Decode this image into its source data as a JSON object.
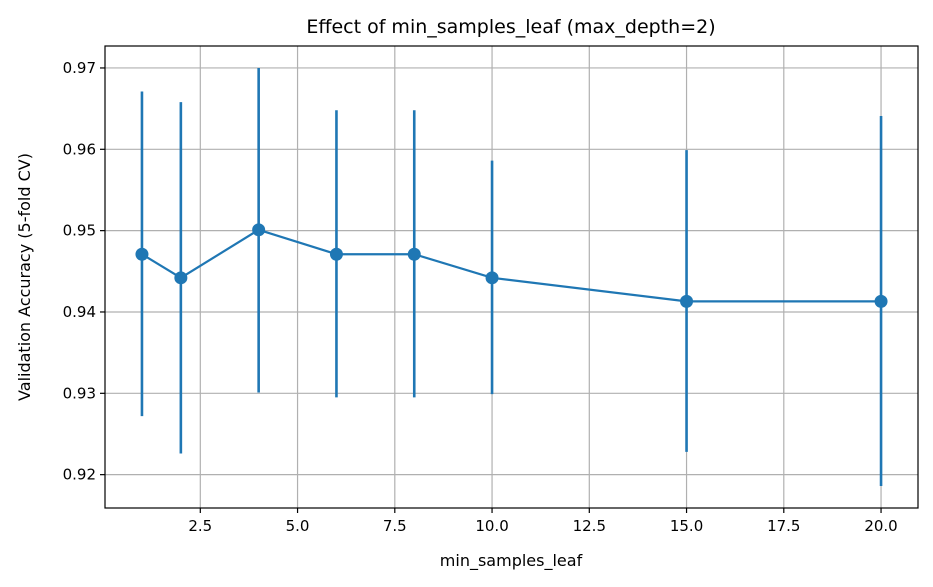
{
  "chart_data": {
    "type": "line",
    "title": "Effect of min_samples_leaf (max_depth=2)",
    "xlabel": "min_samples_leaf",
    "ylabel": "Validation Accuracy (5-fold CV)",
    "xlim": [
      0.05,
      20.95
    ],
    "ylim": [
      0.9159,
      0.9727
    ],
    "xticks": [
      2.5,
      5.0,
      7.5,
      10.0,
      12.5,
      15.0,
      17.5,
      20.0
    ],
    "xtick_labels": [
      "2.5",
      "5.0",
      "7.5",
      "10.0",
      "12.5",
      "15.0",
      "17.5",
      "20.0"
    ],
    "yticks": [
      0.92,
      0.93,
      0.94,
      0.95,
      0.96,
      0.97
    ],
    "ytick_labels": [
      "0.92",
      "0.93",
      "0.94",
      "0.95",
      "0.96",
      "0.97"
    ],
    "grid": true,
    "color": "#1f77b4",
    "series": [
      {
        "x": [
          1,
          2,
          4,
          6,
          8,
          10,
          15,
          20
        ],
        "y": [
          0.9471,
          0.9442,
          0.9501,
          0.9471,
          0.9471,
          0.9442,
          0.9413,
          0.9413
        ],
        "yerr_low": [
          0.9272,
          0.9226,
          0.9301,
          0.9295,
          0.9295,
          0.9299,
          0.9228,
          0.9186
        ],
        "yerr_high": [
          0.9671,
          0.9658,
          0.97,
          0.9648,
          0.9648,
          0.9586,
          0.9599,
          0.9641
        ]
      }
    ]
  }
}
